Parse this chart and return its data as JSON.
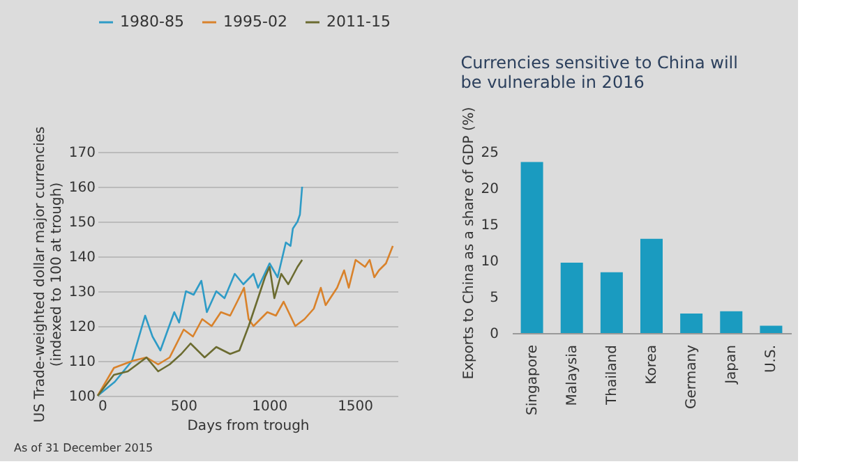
{
  "chart_data": [
    {
      "type": "line",
      "xlabel": "Days from trough",
      "ylabel": "US Trade-weighted dollar major currencies\n(indexed to 100 at trough)",
      "xlim": [
        0,
        1750
      ],
      "ylim": [
        100,
        170
      ],
      "xticks": [
        0,
        500,
        1000,
        1500
      ],
      "yticks": [
        100,
        110,
        120,
        130,
        140,
        150,
        160,
        170
      ],
      "grid": "y",
      "legend": "top",
      "annotations": [
        "As of 31 December 2015"
      ],
      "series": [
        {
          "name": "1980-85",
          "color": "#2e9bc6",
          "x": [
            0,
            100,
            200,
            277,
            320,
            366,
            410,
            447,
            475,
            515,
            560,
            605,
            637,
            692,
            740,
            800,
            850,
            909,
            936,
            1003,
            1050,
            1098,
            1125,
            1139,
            1166,
            1180,
            1193
          ],
          "values": [
            100,
            104,
            110,
            123,
            117,
            113,
            119,
            124,
            121,
            130,
            129,
            133,
            124,
            130,
            128,
            135,
            132,
            135,
            131,
            138,
            134,
            144,
            143,
            148,
            150,
            152,
            160
          ]
        },
        {
          "name": "1995-02",
          "color": "#d9822b",
          "x": [
            0,
            95,
            203,
            285,
            353,
            420,
            502,
            556,
            610,
            665,
            719,
            773,
            814,
            854,
            881,
            909,
            990,
            1040,
            1085,
            1153,
            1207,
            1261,
            1302,
            1330,
            1397,
            1438,
            1465,
            1505,
            1560,
            1587,
            1614,
            1641,
            1682,
            1722
          ],
          "values": [
            100,
            108,
            110,
            111,
            109,
            111,
            119,
            117,
            122,
            120,
            124,
            123,
            127,
            131,
            122,
            120,
            124,
            123,
            127,
            120,
            122,
            125,
            131,
            126,
            131,
            136,
            131,
            139,
            137,
            139,
            134,
            136,
            138,
            143
          ]
        },
        {
          "name": "2011-15",
          "color": "#6b6b30",
          "x": [
            0,
            95,
            176,
            285,
            353,
            420,
            488,
            542,
            624,
            692,
            773,
            827,
            881,
            922,
            976,
            1003,
            1031,
            1071,
            1112,
            1166,
            1193
          ],
          "values": [
            100,
            106,
            107,
            111,
            107,
            109,
            112,
            115,
            111,
            114,
            112,
            113,
            120,
            126,
            134,
            137,
            128,
            135,
            132,
            137,
            139
          ]
        }
      ]
    },
    {
      "type": "bar",
      "title": "Currencies sensitive to China will\nbe vulnerable in 2016",
      "ylabel": "Exports to China as a share of GDP (%)",
      "categories": [
        "Singapore",
        "Malaysia",
        "Thailand",
        "Korea",
        "Germany",
        "Japan",
        "U.S."
      ],
      "values": [
        23.6,
        9.7,
        8.4,
        13.0,
        2.7,
        3.0,
        1.0
      ],
      "color": "#1a9bc0",
      "ylim": [
        0,
        25
      ],
      "yticks": [
        0,
        5,
        10,
        15,
        20,
        25
      ],
      "grid": false
    }
  ]
}
